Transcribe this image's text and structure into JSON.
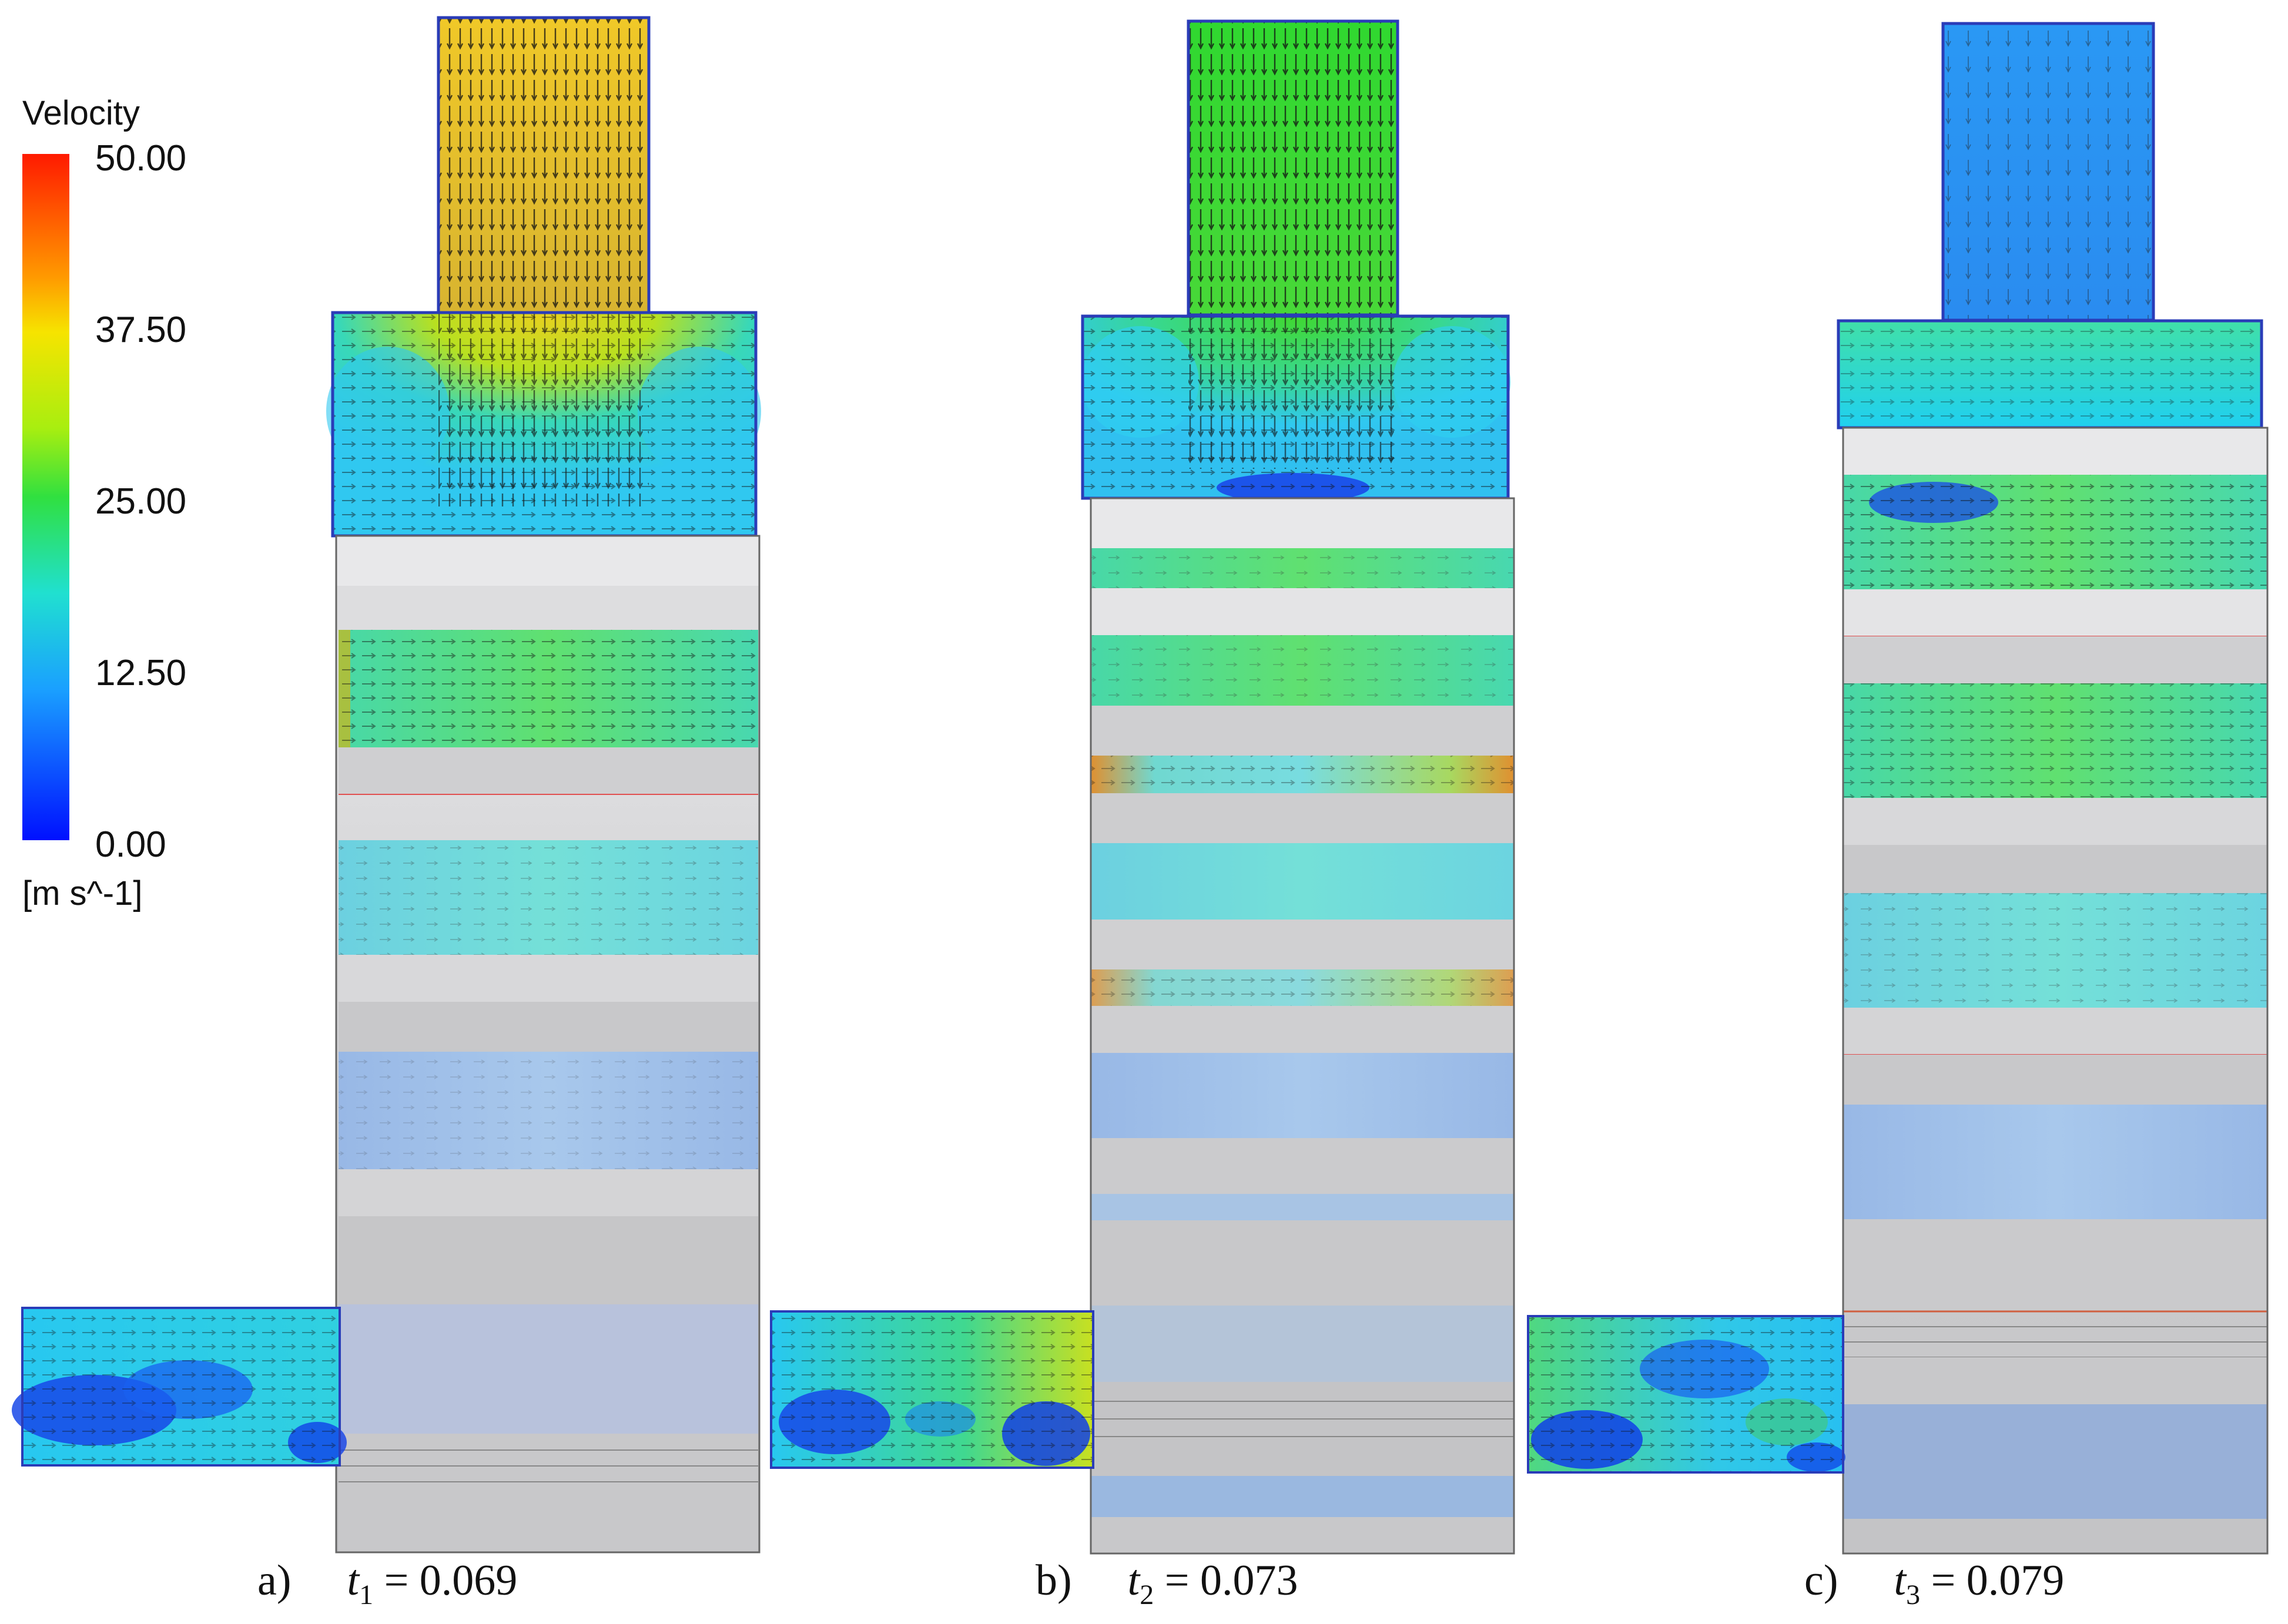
{
  "legend": {
    "title": "Velocity",
    "ticks": [
      "50.00",
      "37.50",
      "25.00",
      "12.50",
      "0.00"
    ],
    "unit": "[m s^-1]",
    "gradient_colors": [
      "#ff1a00",
      "#ffb400",
      "#f0ff00",
      "#30e020",
      "#20e0d0",
      "#1a8cff",
      "#0010ff"
    ]
  },
  "panels": [
    {
      "label": "a)",
      "var": "t",
      "sub": "1",
      "value": "= 0.069",
      "top_jet_color": "#e6c020"
    },
    {
      "label": "b)",
      "var": "t",
      "sub": "2",
      "value": "= 0.073",
      "top_jet_color": "#40d828"
    },
    {
      "label": "c)",
      "var": "t",
      "sub": "3",
      "value": "= 0.079",
      "top_jet_color": "#2a90f0"
    }
  ],
  "colors": {
    "piston_gray": "#d0d0d2",
    "cavity_cyan": "#40d8e0",
    "cavity_green": "#60e080",
    "slow_blue": "#1848e8",
    "faded_blue": "#a8c0e8",
    "outline": "#2a3cb8"
  }
}
